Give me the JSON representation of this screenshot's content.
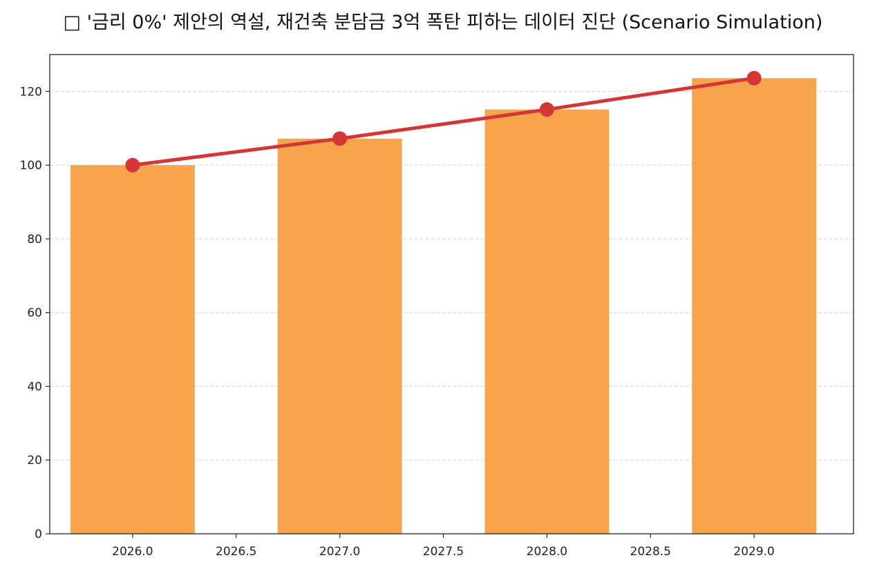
{
  "chart_data": {
    "type": "bar",
    "title": "□ '금리 0%' 제안의 역설, 재건축 분담금 3억 폭탄 피하는 데이터 진단 (Scenario Simulation)",
    "xlabel": "",
    "ylabel": "",
    "x": [
      2026,
      2027,
      2028,
      2029
    ],
    "bar_values": [
      100,
      107.2,
      115.1,
      123.6
    ],
    "line_values": [
      100,
      107.2,
      115.1,
      123.6
    ],
    "xlim": [
      2025.6,
      2029.48
    ],
    "ylim": [
      0,
      130
    ],
    "x_ticks": [
      2026.0,
      2026.5,
      2027.0,
      2027.5,
      2028.0,
      2028.5,
      2029.0
    ],
    "x_tick_labels": [
      "2026.0",
      "2026.5",
      "2027.0",
      "2027.5",
      "2028.0",
      "2028.5",
      "2029.0"
    ],
    "y_ticks": [
      0,
      20,
      40,
      60,
      80,
      100,
      120
    ],
    "y_tick_labels": [
      "0",
      "20",
      "40",
      "60",
      "80",
      "100",
      "120"
    ],
    "bar_width": 0.6,
    "grid": {
      "y": true,
      "x": false,
      "style": "dashed"
    },
    "legend": "none",
    "colors": {
      "bar": "#F7A44C",
      "line": "#D43535",
      "marker": "#D43535",
      "grid": "#D4D4D4",
      "axis": "#222222"
    }
  }
}
